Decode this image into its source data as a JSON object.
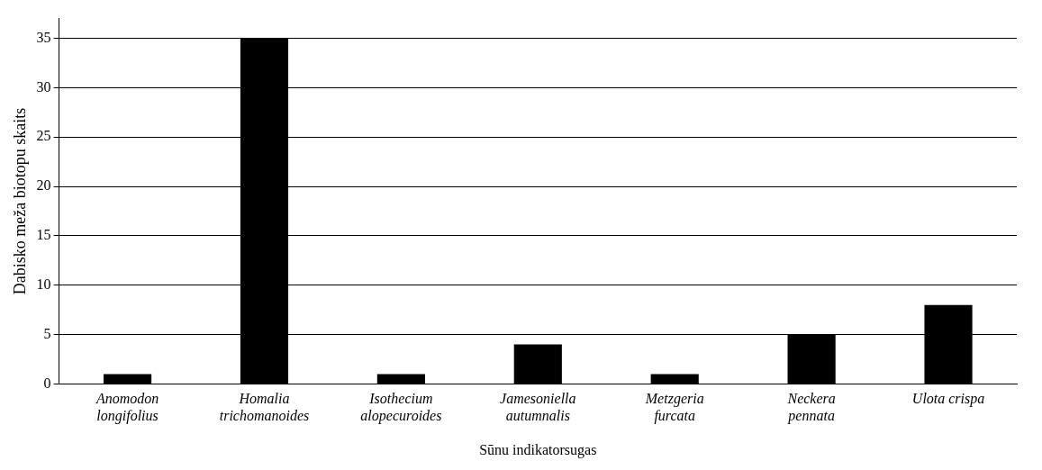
{
  "chart_data": {
    "type": "bar",
    "xlabel": "Sūnu indikatorsugas",
    "ylabel": "Dabisko meža biotopu skaits",
    "categories": [
      "Anomodon longifolius",
      "Homalia trichomanoides",
      "Isothecium alopecuroides",
      "Jamesoniella autumnalis",
      "Metzgeria furcata",
      "Neckera pennata",
      "Ulota crispa"
    ],
    "values": [
      1,
      35,
      1,
      4,
      1,
      5,
      8
    ],
    "color": "#000000",
    "ylim": [
      0,
      37
    ],
    "yticks": [
      0,
      5,
      10,
      15,
      20,
      25,
      30,
      35
    ],
    "grid": "y",
    "legend": false
  }
}
